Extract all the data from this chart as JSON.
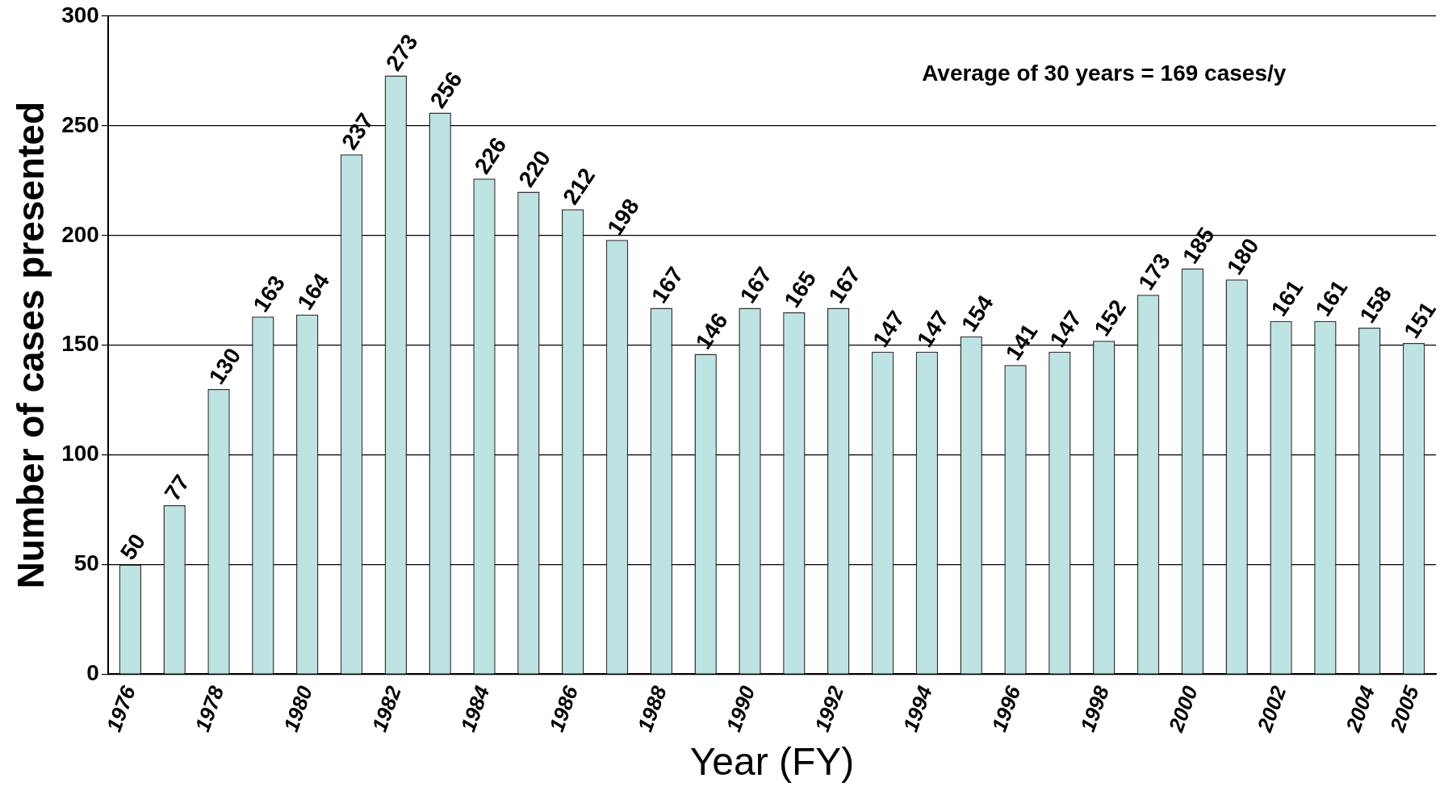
{
  "chart_data": {
    "type": "bar",
    "xlabel": "Year (FY)",
    "ylabel": "Number of cases presented",
    "categories": [
      "1976",
      null,
      "1978",
      null,
      "1980",
      null,
      "1982",
      null,
      "1984",
      null,
      "1986",
      null,
      "1988",
      null,
      "1990",
      null,
      "1992",
      null,
      "1994",
      null,
      "1996",
      null,
      "1998",
      null,
      "2000",
      null,
      "2002",
      null,
      "2004",
      "2005"
    ],
    "values": [
      50,
      77,
      130,
      163,
      164,
      237,
      273,
      256,
      226,
      220,
      212,
      198,
      167,
      146,
      167,
      165,
      167,
      147,
      147,
      154,
      141,
      147,
      152,
      173,
      185,
      180,
      161,
      161,
      158,
      151
    ],
    "color": "#bde3e3",
    "ylim": [
      0,
      300
    ],
    "yticks": [
      0,
      50,
      100,
      150,
      200,
      250,
      300
    ],
    "grid": "y",
    "legend": false,
    "data_labels": true,
    "annotations": [
      "Average of 30 years = 169 cases/y"
    ]
  }
}
